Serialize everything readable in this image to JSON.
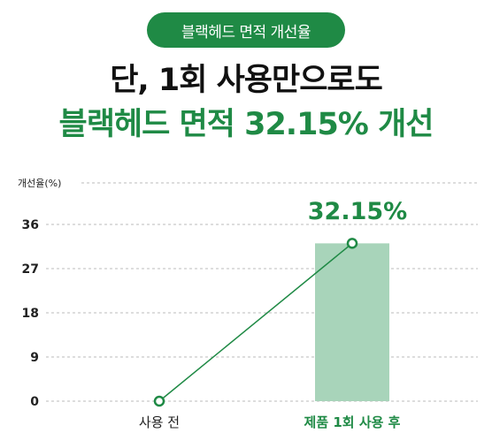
{
  "header": {
    "badge": "블랙헤드 면적 개선율",
    "title_line1": "단, 1회 사용만으로도",
    "title_line2": "블랙헤드 면적 32.15% 개선"
  },
  "colors": {
    "accent": "#1f8a45",
    "bar": "#a8d4ba",
    "grid": "#bbbbbb",
    "text": "#222222"
  },
  "chart_data": {
    "type": "bar",
    "ylabel": "개선율(%)",
    "yticks": [
      0,
      9,
      18,
      27,
      36
    ],
    "ylim": [
      0,
      42
    ],
    "categories": [
      "사용 전",
      "제품 1회 사용 후"
    ],
    "series": [
      {
        "values": [
          0,
          32.15
        ]
      }
    ],
    "line_overlay": [
      0,
      32.15
    ],
    "annotation": "32.15%",
    "grid": true
  }
}
